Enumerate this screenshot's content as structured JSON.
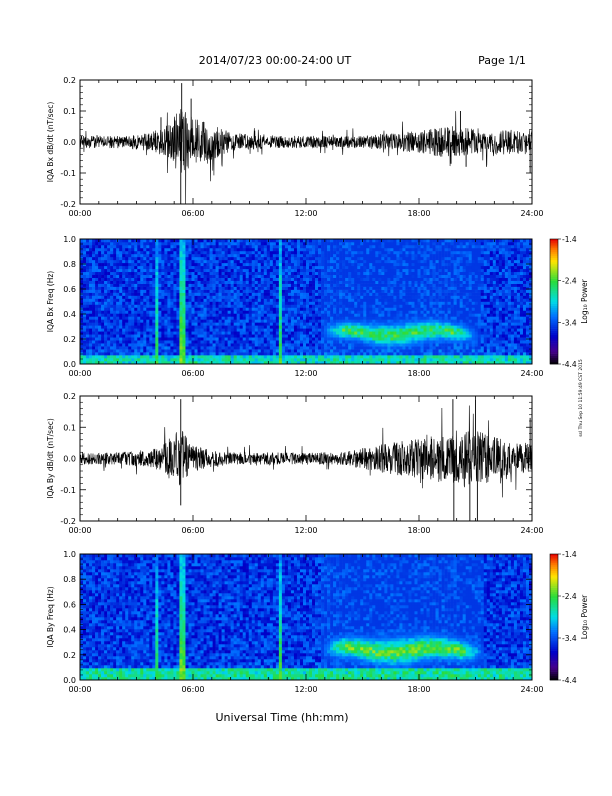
{
  "header": {
    "title": "2014/07/23  00:00-24:00 UT",
    "page_label": "Page 1/1"
  },
  "footer": {
    "xlabel": "Universal Time (hh:mm)",
    "side_note": "ssl Thu Sep 10 11:59:49 CST 2015"
  },
  "chart_data": [
    {
      "type": "line",
      "name": "bx-timeseries",
      "ylabel": "IQA Bx dB/dt (nT/sec)",
      "xlim": [
        0,
        24
      ],
      "ylim": [
        -0.2,
        0.2
      ],
      "x_ticks": [
        "00:00",
        "06:00",
        "12:00",
        "18:00",
        "24:00"
      ],
      "y_ticks": [
        "-0.2",
        "-0.1",
        "0.0",
        "0.1",
        "0.2"
      ],
      "envelope": [
        {
          "x": 0.0,
          "amp": 0.02
        },
        {
          "x": 1.0,
          "amp": 0.02
        },
        {
          "x": 2.5,
          "amp": 0.02
        },
        {
          "x": 3.8,
          "amp": 0.03
        },
        {
          "x": 4.4,
          "amp": 0.05
        },
        {
          "x": 5.0,
          "amp": 0.08
        },
        {
          "x": 5.4,
          "amp": 0.12
        },
        {
          "x": 5.7,
          "amp": 0.09
        },
        {
          "x": 6.3,
          "amp": 0.07
        },
        {
          "x": 7.0,
          "amp": 0.06
        },
        {
          "x": 8.0,
          "amp": 0.03
        },
        {
          "x": 10.0,
          "amp": 0.02
        },
        {
          "x": 13.0,
          "amp": 0.02
        },
        {
          "x": 15.0,
          "amp": 0.02
        },
        {
          "x": 17.0,
          "amp": 0.03
        },
        {
          "x": 19.5,
          "amp": 0.05
        },
        {
          "x": 21.5,
          "amp": 0.04
        },
        {
          "x": 24.0,
          "amp": 0.04
        }
      ],
      "spikes": [
        {
          "x": 5.35,
          "y": -0.2
        },
        {
          "x": 5.4,
          "y": 0.19
        },
        {
          "x": 5.9,
          "y": 0.14
        },
        {
          "x": 4.3,
          "y": 0.08
        },
        {
          "x": 20.2,
          "y": 0.1
        },
        {
          "x": 19.7,
          "y": -0.07
        },
        {
          "x": 20.5,
          "y": -0.08
        },
        {
          "x": 23.9,
          "y": -0.1
        }
      ]
    },
    {
      "type": "heatmap",
      "name": "bx-spectrogram",
      "ylabel": "IQA Bx Freq (Hz)",
      "xlim": [
        0,
        24
      ],
      "ylim": [
        0.0,
        1.0
      ],
      "x_ticks": [
        "00:00",
        "06:00",
        "12:00",
        "18:00",
        "24:00"
      ],
      "y_ticks": [
        "0.0",
        "0.2",
        "0.4",
        "0.6",
        "0.8",
        "1.0"
      ],
      "colorbar": {
        "label": "Log₁₀ Power",
        "range": [
          -4.4,
          -1.4
        ],
        "ticks": [
          "-1.4",
          "-2.4",
          "-3.4",
          "-4.4"
        ]
      },
      "features": {
        "background": -3.5,
        "vertical_lines": [
          {
            "x": 5.3,
            "strength": 1.0
          },
          {
            "x": 5.55,
            "strength": 0.8
          },
          {
            "x": 4.1,
            "strength": 0.4
          },
          {
            "x": 10.6,
            "strength": 0.6
          }
        ],
        "pc1_band": {
          "x_start": 12.8,
          "x_end": 21.2,
          "f_center": 0.25,
          "f_width": 0.05,
          "peak": -2.3
        },
        "low_freq_floor": {
          "f_max": 0.08,
          "level": -2.9
        }
      }
    },
    {
      "type": "line",
      "name": "by-timeseries",
      "ylabel": "IQA By dB/dt (nT/sec)",
      "xlim": [
        0,
        24
      ],
      "ylim": [
        -0.2,
        0.2
      ],
      "x_ticks": [
        "00:00",
        "06:00",
        "12:00",
        "18:00",
        "24:00"
      ],
      "y_ticks": [
        "-0.2",
        "-0.1",
        "0.0",
        "0.1",
        "0.2"
      ],
      "envelope": [
        {
          "x": 0.0,
          "amp": 0.02
        },
        {
          "x": 2.0,
          "amp": 0.02
        },
        {
          "x": 3.8,
          "amp": 0.03
        },
        {
          "x": 4.5,
          "amp": 0.05
        },
        {
          "x": 5.3,
          "amp": 0.1
        },
        {
          "x": 6.0,
          "amp": 0.04
        },
        {
          "x": 8.0,
          "amp": 0.02
        },
        {
          "x": 12.0,
          "amp": 0.02
        },
        {
          "x": 14.0,
          "amp": 0.02
        },
        {
          "x": 15.5,
          "amp": 0.04
        },
        {
          "x": 17.5,
          "amp": 0.06
        },
        {
          "x": 19.5,
          "amp": 0.08
        },
        {
          "x": 20.5,
          "amp": 0.1
        },
        {
          "x": 21.5,
          "amp": 0.08
        },
        {
          "x": 23.0,
          "amp": 0.05
        },
        {
          "x": 24.0,
          "amp": 0.05
        }
      ],
      "spikes": [
        {
          "x": 5.35,
          "y": 0.19
        },
        {
          "x": 5.35,
          "y": -0.15
        },
        {
          "x": 19.8,
          "y": 0.19
        },
        {
          "x": 19.85,
          "y": -0.2
        },
        {
          "x": 20.7,
          "y": -0.2
        },
        {
          "x": 21.0,
          "y": 0.19
        },
        {
          "x": 21.1,
          "y": -0.2
        },
        {
          "x": 23.9,
          "y": 0.13
        }
      ]
    },
    {
      "type": "heatmap",
      "name": "by-spectrogram",
      "ylabel": "IQA By Freq (Hz)",
      "xlim": [
        0,
        24
      ],
      "ylim": [
        0.0,
        1.0
      ],
      "x_ticks": [
        "00:00",
        "06:00",
        "12:00",
        "18:00",
        "24:00"
      ],
      "y_ticks": [
        "0.0",
        "0.2",
        "0.4",
        "0.6",
        "0.8",
        "1.0"
      ],
      "colorbar": {
        "label": "Log₁₀ Power",
        "range": [
          -4.4,
          -1.4
        ],
        "ticks": [
          "-1.4",
          "-2.4",
          "-3.4",
          "-4.4"
        ]
      },
      "features": {
        "background": -3.5,
        "vertical_lines": [
          {
            "x": 5.3,
            "strength": 1.0
          },
          {
            "x": 5.55,
            "strength": 0.8
          },
          {
            "x": 4.1,
            "strength": 0.4
          },
          {
            "x": 10.6,
            "strength": 0.6
          }
        ],
        "pc1_band": {
          "x_start": 12.8,
          "x_end": 21.5,
          "f_center": 0.24,
          "f_width": 0.06,
          "peak": -2.2
        },
        "low_freq_floor": {
          "f_max": 0.1,
          "level": -2.8
        }
      }
    }
  ]
}
